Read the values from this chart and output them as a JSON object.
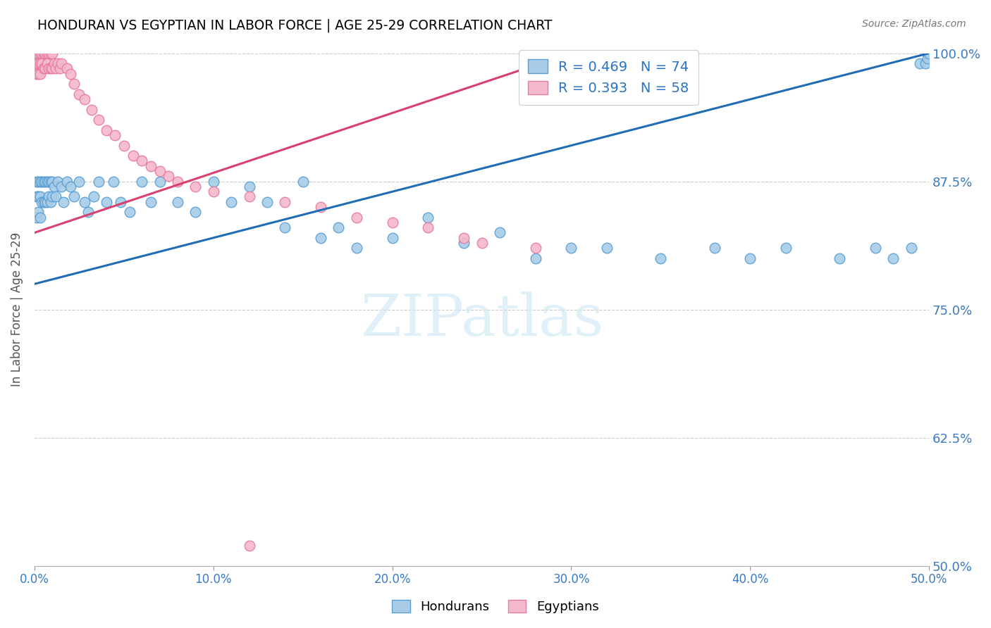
{
  "title": "HONDURAN VS EGYPTIAN IN LABOR FORCE | AGE 25-29 CORRELATION CHART",
  "source": "Source: ZipAtlas.com",
  "ylabel": "In Labor Force | Age 25-29",
  "xlim": [
    0.0,
    0.5
  ],
  "ylim": [
    0.5,
    1.0
  ],
  "xtick_vals": [
    0.0,
    0.1,
    0.2,
    0.3,
    0.4,
    0.5
  ],
  "ytick_vals": [
    0.5,
    0.625,
    0.75,
    0.875,
    1.0
  ],
  "ytick_labels": [
    "50.0%",
    "62.5%",
    "75.0%",
    "87.5%",
    "100.0%"
  ],
  "xtick_labels": [
    "0.0%",
    "10.0%",
    "20.0%",
    "30.0%",
    "40.0%",
    "50.0%"
  ],
  "blue_R": 0.469,
  "blue_N": 74,
  "pink_R": 0.393,
  "pink_N": 58,
  "blue_color": "#a8cce8",
  "pink_color": "#f4b8cb",
  "blue_edge_color": "#5a9fd4",
  "pink_edge_color": "#e87aa0",
  "blue_line_color": "#1f6eb5",
  "pink_line_color": "#d9406e",
  "legend_label_blue": "Hondurans",
  "legend_label_pink": "Egyptians",
  "blue_line_x0": 0.0,
  "blue_line_y0": 0.775,
  "blue_line_x1": 0.5,
  "blue_line_y1": 1.0,
  "pink_line_x0": 0.0,
  "pink_line_y0": 0.825,
  "pink_line_x1": 0.3,
  "pink_line_y1": 1.0,
  "watermark_text": "ZIPatlas",
  "figsize": [
    14.06,
    8.92
  ],
  "dpi": 100,
  "blue_pts_x": [
    0.001,
    0.001,
    0.001,
    0.002,
    0.002,
    0.002,
    0.003,
    0.003,
    0.003,
    0.004,
    0.004,
    0.005,
    0.005,
    0.006,
    0.006,
    0.007,
    0.007,
    0.008,
    0.008,
    0.009,
    0.009,
    0.01,
    0.01,
    0.011,
    0.012,
    0.013,
    0.015,
    0.016,
    0.018,
    0.02,
    0.022,
    0.025,
    0.028,
    0.03,
    0.033,
    0.036,
    0.04,
    0.044,
    0.048,
    0.053,
    0.06,
    0.065,
    0.07,
    0.08,
    0.09,
    0.1,
    0.11,
    0.12,
    0.13,
    0.14,
    0.15,
    0.16,
    0.17,
    0.18,
    0.2,
    0.22,
    0.24,
    0.26,
    0.28,
    0.3,
    0.32,
    0.35,
    0.38,
    0.4,
    0.42,
    0.45,
    0.47,
    0.48,
    0.49,
    0.495,
    0.498,
    0.499,
    0.499,
    0.5
  ],
  "blue_pts_y": [
    0.875,
    0.86,
    0.84,
    0.875,
    0.86,
    0.845,
    0.875,
    0.86,
    0.84,
    0.875,
    0.855,
    0.875,
    0.855,
    0.875,
    0.855,
    0.875,
    0.855,
    0.875,
    0.86,
    0.875,
    0.855,
    0.875,
    0.86,
    0.87,
    0.86,
    0.875,
    0.87,
    0.855,
    0.875,
    0.87,
    0.86,
    0.875,
    0.855,
    0.845,
    0.86,
    0.875,
    0.855,
    0.875,
    0.855,
    0.845,
    0.875,
    0.855,
    0.875,
    0.855,
    0.845,
    0.875,
    0.855,
    0.87,
    0.855,
    0.83,
    0.875,
    0.82,
    0.83,
    0.81,
    0.82,
    0.84,
    0.815,
    0.825,
    0.8,
    0.81,
    0.81,
    0.8,
    0.81,
    0.8,
    0.81,
    0.8,
    0.81,
    0.8,
    0.81,
    0.99,
    0.99,
    1.0,
    0.995,
    1.0
  ],
  "pink_pts_x": [
    0.001,
    0.001,
    0.001,
    0.001,
    0.002,
    0.002,
    0.002,
    0.002,
    0.003,
    0.003,
    0.003,
    0.004,
    0.004,
    0.005,
    0.005,
    0.006,
    0.006,
    0.007,
    0.007,
    0.008,
    0.008,
    0.009,
    0.009,
    0.01,
    0.01,
    0.011,
    0.012,
    0.013,
    0.014,
    0.015,
    0.018,
    0.02,
    0.022,
    0.025,
    0.028,
    0.032,
    0.036,
    0.04,
    0.045,
    0.05,
    0.055,
    0.06,
    0.065,
    0.07,
    0.075,
    0.08,
    0.09,
    0.1,
    0.12,
    0.14,
    0.16,
    0.18,
    0.2,
    0.22,
    0.24,
    0.25,
    0.28,
    0.12
  ],
  "pink_pts_y": [
    1.0,
    1.0,
    0.99,
    0.98,
    1.0,
    1.0,
    0.99,
    0.98,
    1.0,
    0.99,
    0.98,
    1.0,
    0.99,
    1.0,
    0.985,
    1.0,
    0.985,
    1.0,
    0.99,
    1.0,
    0.985,
    1.0,
    0.985,
    1.0,
    0.985,
    0.99,
    0.985,
    0.99,
    0.985,
    0.99,
    0.985,
    0.98,
    0.97,
    0.96,
    0.955,
    0.945,
    0.935,
    0.925,
    0.92,
    0.91,
    0.9,
    0.895,
    0.89,
    0.885,
    0.88,
    0.875,
    0.87,
    0.865,
    0.86,
    0.855,
    0.85,
    0.84,
    0.835,
    0.83,
    0.82,
    0.815,
    0.81,
    0.52
  ]
}
